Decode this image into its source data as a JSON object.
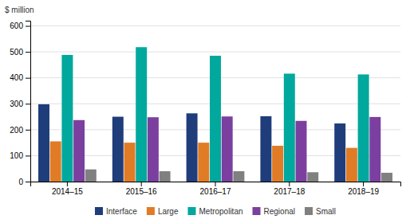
{
  "chart_data": {
    "type": "bar",
    "ylabel": "$ million",
    "categories": [
      "2014–15",
      "2015–16",
      "2016–17",
      "2017–18",
      "2018–19"
    ],
    "series": [
      {
        "name": "Interface",
        "color": "#1f3d7a",
        "values": [
          298,
          250,
          263,
          252,
          224
        ]
      },
      {
        "name": "Large",
        "color": "#e07b26",
        "values": [
          155,
          150,
          150,
          138,
          130
        ]
      },
      {
        "name": "Metropolitan",
        "color": "#00a89d",
        "values": [
          488,
          518,
          485,
          416,
          413
        ]
      },
      {
        "name": "Regional",
        "color": "#7b3fa0",
        "values": [
          237,
          248,
          251,
          234,
          249
        ]
      },
      {
        "name": "Small",
        "color": "#808080",
        "values": [
          47,
          40,
          40,
          36,
          34
        ]
      }
    ],
    "ylim": [
      0,
      620
    ],
    "yticks": [
      0,
      100,
      200,
      300,
      400,
      500,
      600
    ],
    "grid": true,
    "legend": "bottom"
  }
}
